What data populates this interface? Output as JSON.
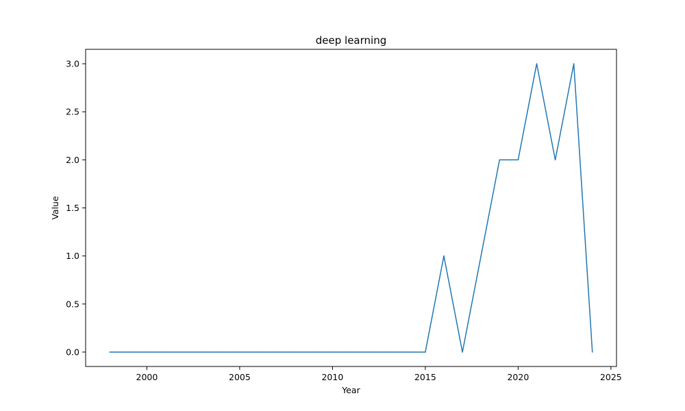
{
  "chart_data": {
    "type": "line",
    "title": "deep learning",
    "xlabel": "Year",
    "ylabel": "Value",
    "xlim": [
      1996.7,
      2025.3
    ],
    "ylim": [
      -0.15,
      3.15
    ],
    "xticks": [
      2000,
      2005,
      2010,
      2015,
      2020,
      2025
    ],
    "yticks": [
      0.0,
      0.5,
      1.0,
      1.5,
      2.0,
      2.5,
      3.0
    ],
    "ytick_labels": [
      "0.0",
      "0.5",
      "1.0",
      "1.5",
      "2.0",
      "2.5",
      "3.0"
    ],
    "grid": false,
    "series": [
      {
        "color": "#1f77b4",
        "x": [
          1998,
          1999,
          2000,
          2001,
          2002,
          2003,
          2004,
          2005,
          2006,
          2007,
          2008,
          2009,
          2010,
          2011,
          2012,
          2013,
          2014,
          2015,
          2016,
          2017,
          2018,
          2019,
          2020,
          2021,
          2022,
          2023,
          2024
        ],
        "y": [
          0,
          0,
          0,
          0,
          0,
          0,
          0,
          0,
          0,
          0,
          0,
          0,
          0,
          0,
          0,
          0,
          0,
          0,
          1,
          0,
          1,
          2,
          2,
          3,
          2,
          3,
          0
        ]
      }
    ]
  }
}
